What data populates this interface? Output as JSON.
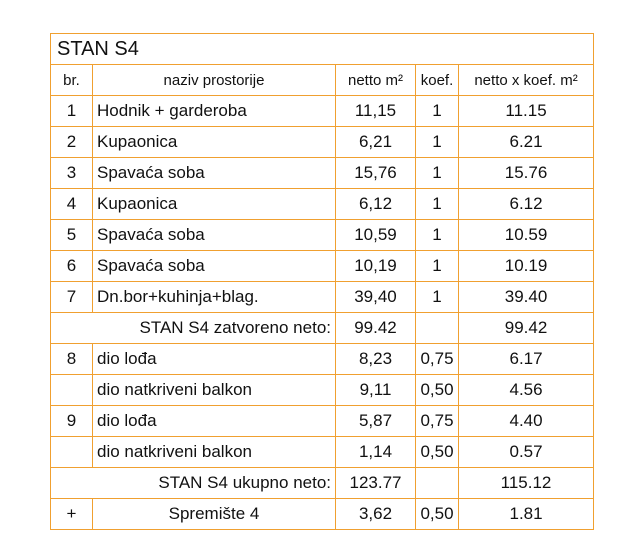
{
  "title": "STAN S4",
  "header": [
    "br.",
    "naziv prostorije",
    "netto m²",
    "koef.",
    "netto x koef. m²"
  ],
  "rows": [
    {
      "no": "1",
      "name": "Hodnik + garderoba",
      "netto": "11,15",
      "koef": "1",
      "total": "11.15"
    },
    {
      "no": "2",
      "name": "Kupaonica",
      "netto": "6,21",
      "koef": "1",
      "total": "6.21"
    },
    {
      "no": "3",
      "name": "Spavaća soba",
      "netto": "15,76",
      "koef": "1",
      "total": "15.76"
    },
    {
      "no": "4",
      "name": "Kupaonica",
      "netto": "6,12",
      "koef": "1",
      "total": "6.12"
    },
    {
      "no": "5",
      "name": "Spavaća soba",
      "netto": "10,59",
      "koef": "1",
      "total": "10.59"
    },
    {
      "no": "6",
      "name": "Spavaća soba",
      "netto": "10,19",
      "koef": "1",
      "total": "10.19"
    },
    {
      "no": "7",
      "name": "Dn.bor+kuhinja+blag.",
      "netto": "39,40",
      "koef": "1",
      "total": "39.40"
    },
    {
      "label": "STAN S4 zatvoreno neto:",
      "netto": "99.42",
      "total": "99.42"
    },
    {
      "no": "8",
      "name": "dio lođa",
      "netto": "8,23",
      "koef": "0,75",
      "total": "6.17"
    },
    {
      "name": "dio natkriveni balkon",
      "netto": "9,11",
      "koef": "0,50",
      "total": "4.56"
    },
    {
      "no": "9",
      "name": "dio lođa",
      "netto": "5,87",
      "koef": "0,75",
      "total": "4.40"
    },
    {
      "name": "dio natkriveni balkon",
      "netto": "1,14",
      "koef": "0,50",
      "total": "0.57"
    },
    {
      "label": "STAN S4 ukupno neto:",
      "netto": "123.77",
      "total": "115.12"
    },
    {
      "no": "+",
      "name": "Spremište 4",
      "netto": "3,62",
      "koef": "0,50",
      "total": "1.81"
    }
  ]
}
